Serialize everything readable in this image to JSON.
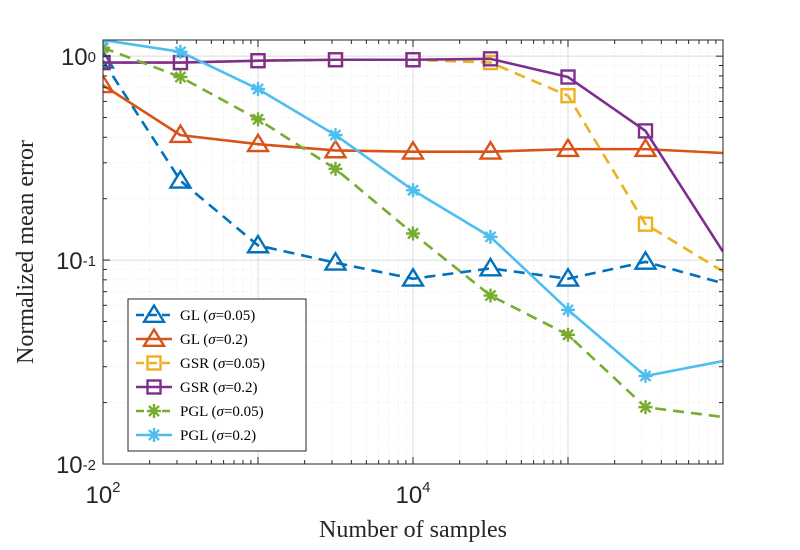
{
  "chart_data": {
    "type": "line",
    "title": "",
    "xlabel": "Number of samples",
    "ylabel": "Normalized mean error",
    "xscale": "log",
    "yscale": "log",
    "xlim": [
      100,
      1000000
    ],
    "ylim": [
      0.01,
      1.2
    ],
    "grid": true,
    "legend_position": "bottom-left",
    "x_ticks": [
      {
        "value": 100,
        "base": "10",
        "exp": "2"
      },
      {
        "value": 10000,
        "base": "10",
        "exp": "4"
      }
    ],
    "y_ticks": [
      {
        "value": 1,
        "label": "10",
        "exp": "0",
        "mode": "exp"
      },
      {
        "value": 0.1,
        "base": "10",
        "exp": "-1",
        "mode": "pow"
      },
      {
        "value": 0.01,
        "base": "10",
        "exp": "-2",
        "mode": "pow"
      }
    ],
    "series": [
      {
        "name": "GL (σ=0.05)",
        "legend_parts": [
          "GL (",
          "σ",
          "=0.05)"
        ],
        "color": "#0072BD",
        "dash": "dashed",
        "marker": "triangle",
        "x": [
          100,
          316,
          1000,
          3162,
          10000,
          31623,
          100000,
          316228,
          1000000
        ],
        "y": [
          0.95,
          0.245,
          0.118,
          0.097,
          0.081,
          0.091,
          0.081,
          0.098,
          0.077
        ]
      },
      {
        "name": "GL (σ=0.2)",
        "legend_parts": [
          "GL (",
          "σ",
          "=0.2)"
        ],
        "color": "#D95319",
        "dash": "solid",
        "marker": "triangle",
        "x": [
          100,
          316,
          1000,
          3162,
          10000,
          31623,
          100000,
          316228,
          1000000
        ],
        "y": [
          0.72,
          0.41,
          0.37,
          0.345,
          0.34,
          0.34,
          0.35,
          0.35,
          0.335
        ]
      },
      {
        "name": "GSR (σ=0.05)",
        "legend_parts": [
          "GSR (",
          "σ",
          "=0.05)"
        ],
        "color": "#EDB120",
        "dash": "dashed",
        "marker": "square",
        "x": [
          100,
          316,
          1000,
          3162,
          10000,
          31623,
          100000,
          316228,
          1000000
        ],
        "y": [
          0.93,
          0.93,
          0.95,
          0.96,
          0.96,
          0.93,
          0.64,
          0.15,
          0.088
        ]
      },
      {
        "name": "GSR (σ=0.2)",
        "legend_parts": [
          "GSR (",
          "σ",
          "=0.2)"
        ],
        "color": "#7E2F8E",
        "dash": "solid",
        "marker": "square",
        "x": [
          100,
          316,
          1000,
          3162,
          10000,
          31623,
          100000,
          316228,
          1000000
        ],
        "y": [
          0.93,
          0.93,
          0.95,
          0.96,
          0.96,
          0.97,
          0.79,
          0.43,
          0.11
        ]
      },
      {
        "name": "PGL (σ=0.05)",
        "legend_parts": [
          "PGL (",
          "σ",
          "=0.05)"
        ],
        "color": "#77AC30",
        "dash": "dashed",
        "marker": "asterisk",
        "x": [
          100,
          316,
          1000,
          3162,
          10000,
          31623,
          100000,
          316228,
          1000000
        ],
        "y": [
          1.1,
          0.79,
          0.49,
          0.28,
          0.135,
          0.067,
          0.043,
          0.019,
          0.017
        ]
      },
      {
        "name": "PGL (σ=0.2)",
        "legend_parts": [
          "PGL (",
          "σ",
          "=0.2)"
        ],
        "color": "#4DBEEE",
        "dash": "solid",
        "marker": "asterisk",
        "x": [
          100,
          316,
          1000,
          3162,
          10000,
          31623,
          100000,
          316228,
          1000000
        ],
        "y": [
          1.2,
          1.05,
          0.69,
          0.41,
          0.22,
          0.13,
          0.057,
          0.027,
          0.032
        ]
      }
    ]
  }
}
